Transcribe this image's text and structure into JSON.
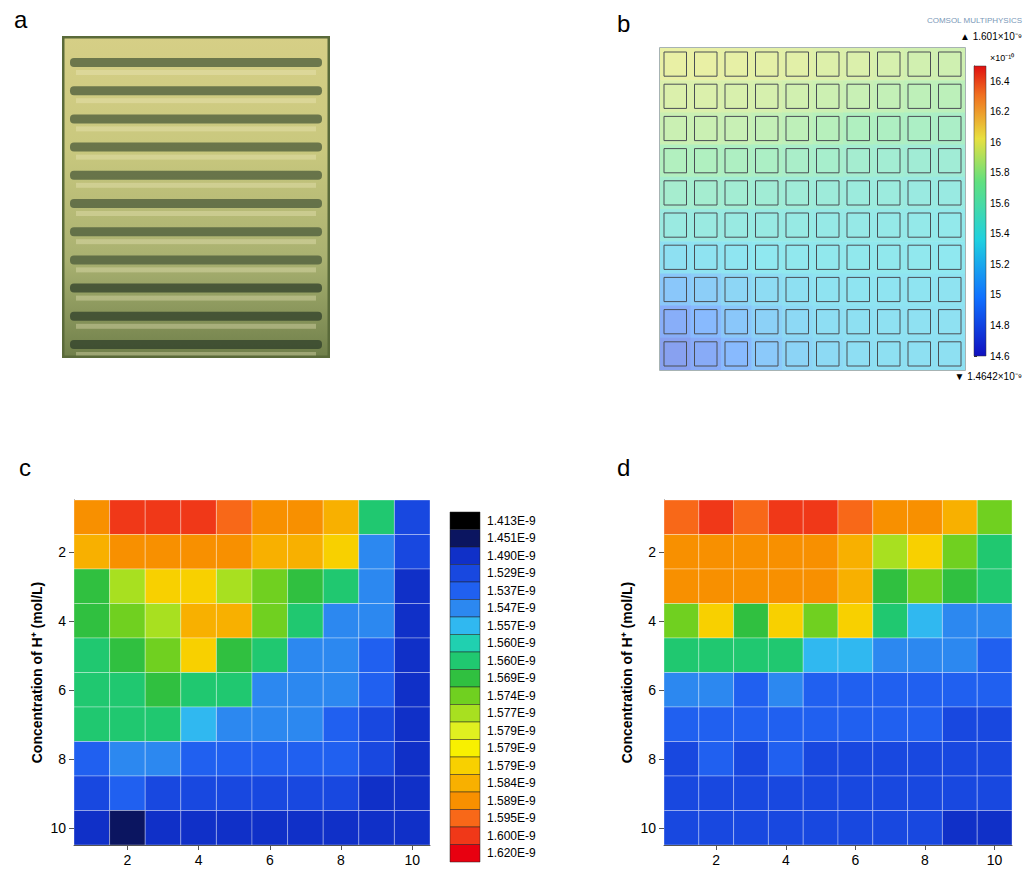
{
  "photo": {
    "label": "a"
  },
  "chart_data": [
    {
      "label": "b",
      "type": "heatmap",
      "tick_labels": false,
      "watermark": "COMSOL MULTIPHYSICS",
      "cells": [
        [
          15.98,
          15.98,
          15.97,
          15.96,
          15.95,
          15.93,
          15.92,
          15.9,
          15.88,
          15.87
        ],
        [
          15.92,
          15.92,
          15.91,
          15.9,
          15.88,
          15.86,
          15.84,
          15.82,
          15.8,
          15.79
        ],
        [
          15.85,
          15.85,
          15.84,
          15.82,
          15.8,
          15.77,
          15.74,
          15.72,
          15.7,
          15.68
        ],
        [
          15.75,
          15.74,
          15.72,
          15.7,
          15.67,
          15.64,
          15.61,
          15.59,
          15.57,
          15.56
        ],
        [
          15.62,
          15.61,
          15.59,
          15.57,
          15.55,
          15.53,
          15.51,
          15.5,
          15.48,
          15.47
        ],
        [
          15.48,
          15.48,
          15.47,
          15.46,
          15.45,
          15.44,
          15.43,
          15.42,
          15.41,
          15.4
        ],
        [
          15.3,
          15.32,
          15.34,
          15.36,
          15.37,
          15.38,
          15.38,
          15.38,
          15.37,
          15.36
        ],
        [
          15.1,
          15.16,
          15.22,
          15.27,
          15.3,
          15.32,
          15.33,
          15.33,
          15.33,
          15.32
        ],
        [
          14.9,
          15.0,
          15.1,
          15.18,
          15.24,
          15.28,
          15.3,
          15.31,
          15.31,
          15.31
        ],
        [
          14.8,
          14.88,
          15.0,
          15.12,
          15.2,
          15.25,
          15.28,
          15.3,
          15.3,
          15.3
        ]
      ],
      "colorbar": {
        "range": [
          14.6,
          16.5
        ],
        "ticks": [
          14.6,
          14.8,
          15,
          15.2,
          15.4,
          15.6,
          15.8,
          16,
          16.2,
          16.4
        ],
        "multiplier": "×10⁻¹⁰",
        "max_label": "▲ 1.601×10⁻⁹",
        "min_label": "▼ 1.4642×10⁻⁹"
      }
    },
    {
      "label": "c",
      "type": "heatmap",
      "ylabel": "Concentration of H⁺ (mol/L)",
      "x": [
        1,
        2,
        3,
        4,
        5,
        6,
        7,
        8,
        9,
        10
      ],
      "y": [
        1,
        2,
        3,
        4,
        5,
        6,
        7,
        8,
        9,
        10
      ],
      "xlim": [
        0.5,
        10.5
      ],
      "ylim": [
        10.5,
        0.5
      ],
      "xticks": [
        2,
        4,
        6,
        8,
        10
      ],
      "yticks": [
        2,
        4,
        6,
        8,
        10
      ],
      "cells": [
        [
          1.592e-09,
          1.6e-09,
          1.612e-09,
          1.605e-09,
          1.598e-09,
          1.594e-09,
          1.59e-09,
          1.586e-09,
          1.56e-09,
          1.53e-09
        ],
        [
          1.588e-09,
          1.59e-09,
          1.591e-09,
          1.59e-09,
          1.589e-09,
          1.588e-09,
          1.585e-09,
          1.58e-09,
          1.555e-09,
          1.53e-09
        ],
        [
          1.572e-09,
          1.578e-09,
          1.58e-09,
          1.582e-09,
          1.578e-09,
          1.576e-09,
          1.572e-09,
          1.565e-09,
          1.55e-09,
          1.528e-09
        ],
        [
          1.57e-09,
          1.574e-09,
          1.578e-09,
          1.586e-09,
          1.585e-09,
          1.574e-09,
          1.562e-09,
          1.555e-09,
          1.548e-09,
          1.52e-09
        ],
        [
          1.568e-09,
          1.57e-09,
          1.574e-09,
          1.58e-09,
          1.572e-09,
          1.565e-09,
          1.556e-09,
          1.55e-09,
          1.545e-09,
          1.515e-09
        ],
        [
          1.565e-09,
          1.568e-09,
          1.57e-09,
          1.568e-09,
          1.562e-09,
          1.555e-09,
          1.55e-09,
          1.548e-09,
          1.54e-09,
          1.51e-09
        ],
        [
          1.562e-09,
          1.56e-09,
          1.56e-09,
          1.558e-09,
          1.552e-09,
          1.548e-09,
          1.547e-09,
          1.545e-09,
          1.535e-09,
          1.505e-09
        ],
        [
          1.545e-09,
          1.55e-09,
          1.548e-09,
          1.545e-09,
          1.545e-09,
          1.543e-09,
          1.54e-09,
          1.538e-09,
          1.53e-09,
          1.5e-09
        ],
        [
          1.535e-09,
          1.537e-09,
          1.535e-09,
          1.533e-09,
          1.532e-09,
          1.532e-09,
          1.53e-09,
          1.53e-09,
          1.528e-09,
          1.495e-09
        ],
        [
          1.52e-09,
          1.46e-09,
          1.5e-09,
          1.52e-09,
          1.52e-09,
          1.518e-09,
          1.516e-09,
          1.515e-09,
          1.512e-09,
          1.49e-09
        ]
      ],
      "colorbar": {
        "ticks": [
          {
            "value": 1.413e-09,
            "label": "1.413E-9"
          },
          {
            "value": 1.451e-09,
            "label": "1.451E-9"
          },
          {
            "value": 1.49e-09,
            "label": "1.490E-9"
          },
          {
            "value": 1.529e-09,
            "label": "1.529E-9"
          },
          {
            "value": 1.537e-09,
            "label": "1.537E-9"
          },
          {
            "value": 1.547e-09,
            "label": "1.547E-9"
          },
          {
            "value": 1.557e-09,
            "label": "1.557E-9"
          },
          {
            "value": 1.56e-09,
            "label": "1.560E-9"
          },
          {
            "value": 1.56e-09,
            "label": "1.560E-9"
          },
          {
            "value": 1.569e-09,
            "label": "1.569E-9"
          },
          {
            "value": 1.574e-09,
            "label": "1.574E-9"
          },
          {
            "value": 1.577e-09,
            "label": "1.577E-9"
          },
          {
            "value": 1.579e-09,
            "label": "1.579E-9"
          },
          {
            "value": 1.579e-09,
            "label": "1.579E-9"
          },
          {
            "value": 1.579e-09,
            "label": "1.579E-9"
          },
          {
            "value": 1.584e-09,
            "label": "1.584E-9"
          },
          {
            "value": 1.589e-09,
            "label": "1.589E-9"
          },
          {
            "value": 1.595e-09,
            "label": "1.595E-9"
          },
          {
            "value": 1.6e-09,
            "label": "1.600E-9"
          },
          {
            "value": 1.62e-09,
            "label": "1.620E-9"
          }
        ],
        "colors": [
          "#000000",
          "#0b1560",
          "#1030c8",
          "#1848e0",
          "#2060f0",
          "#2c88f0",
          "#30b8f0",
          "#20d0b0",
          "#20c870",
          "#30c040",
          "#70d020",
          "#a8e020",
          "#e0f020",
          "#f8f000",
          "#f8d000",
          "#f8b000",
          "#f89000",
          "#f86818",
          "#f03818",
          "#e80010"
        ]
      }
    },
    {
      "label": "d",
      "type": "heatmap",
      "ylabel": "Concentration of H⁺ (mol/L)",
      "x": [
        1,
        2,
        3,
        4,
        5,
        6,
        7,
        8,
        9,
        10
      ],
      "y": [
        1,
        2,
        3,
        4,
        5,
        6,
        7,
        8,
        9,
        10
      ],
      "xlim": [
        0.5,
        10.5
      ],
      "ylim": [
        10.5,
        0.5
      ],
      "xticks": [
        2,
        4,
        6,
        8,
        10
      ],
      "yticks": [
        2,
        4,
        6,
        8,
        10
      ],
      "cells": [
        [
          1.595e-09,
          1.6e-09,
          1.598e-09,
          1.602e-09,
          1.6e-09,
          1.598e-09,
          1.592e-09,
          1.59e-09,
          1.585e-09,
          1.575e-09
        ],
        [
          1.59e-09,
          1.592e-09,
          1.59e-09,
          1.591e-09,
          1.59e-09,
          1.588e-09,
          1.578e-09,
          1.58e-09,
          1.575e-09,
          1.565e-09
        ],
        [
          1.589e-09,
          1.589e-09,
          1.59e-09,
          1.59e-09,
          1.589e-09,
          1.586e-09,
          1.57e-09,
          1.575e-09,
          1.572e-09,
          1.56e-09
        ],
        [
          1.574e-09,
          1.58e-09,
          1.572e-09,
          1.582e-09,
          1.575e-09,
          1.579e-09,
          1.565e-09,
          1.558e-09,
          1.556e-09,
          1.556e-09
        ],
        [
          1.56e-09,
          1.562e-09,
          1.56e-09,
          1.56e-09,
          1.557e-09,
          1.557e-09,
          1.556e-09,
          1.55e-09,
          1.55e-09,
          1.545e-09
        ],
        [
          1.548e-09,
          1.548e-09,
          1.546e-09,
          1.548e-09,
          1.546e-09,
          1.546e-09,
          1.546e-09,
          1.545e-09,
          1.545e-09,
          1.54e-09
        ],
        [
          1.54e-09,
          1.54e-09,
          1.538e-09,
          1.54e-09,
          1.538e-09,
          1.538e-09,
          1.538e-09,
          1.537e-09,
          1.535e-09,
          1.535e-09
        ],
        [
          1.535e-09,
          1.537e-09,
          1.535e-09,
          1.537e-09,
          1.535e-09,
          1.535e-09,
          1.535e-09,
          1.533e-09,
          1.532e-09,
          1.53e-09
        ],
        [
          1.533e-09,
          1.535e-09,
          1.533e-09,
          1.535e-09,
          1.533e-09,
          1.533e-09,
          1.533e-09,
          1.532e-09,
          1.53e-09,
          1.53e-09
        ],
        [
          1.53e-09,
          1.532e-09,
          1.53e-09,
          1.532e-09,
          1.53e-09,
          1.53e-09,
          1.53e-09,
          1.53e-09,
          1.528e-09,
          1.528e-09
        ]
      ]
    }
  ]
}
